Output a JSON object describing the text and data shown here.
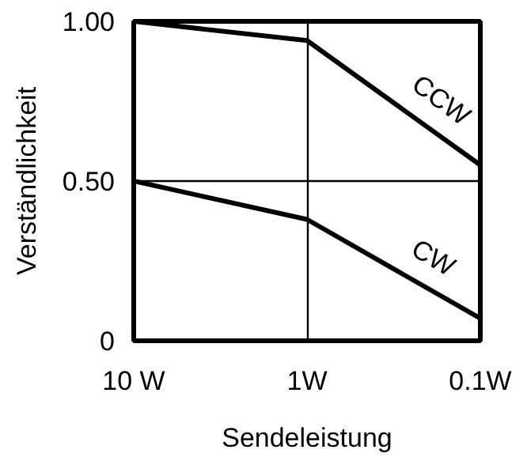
{
  "chart_data": {
    "type": "line",
    "xlabel": "Sendeleistung",
    "ylabel": "Verständlichkeit",
    "categories": [
      "10 W",
      "1W",
      "0.1W"
    ],
    "series": [
      {
        "name": "CCW",
        "color": "#000000",
        "values": [
          1.0,
          0.94,
          0.55
        ]
      },
      {
        "name": "CW",
        "color": "#000000",
        "values": [
          0.5,
          0.38,
          0.07
        ]
      }
    ],
    "ylim": [
      0,
      1.0
    ],
    "yticks": [
      {
        "value": 0,
        "label": "0"
      },
      {
        "value": 0.5,
        "label": "0.50"
      },
      {
        "value": 1.0,
        "label": "1.00"
      }
    ],
    "grid": true,
    "marker": "none",
    "line_style": "solid"
  }
}
